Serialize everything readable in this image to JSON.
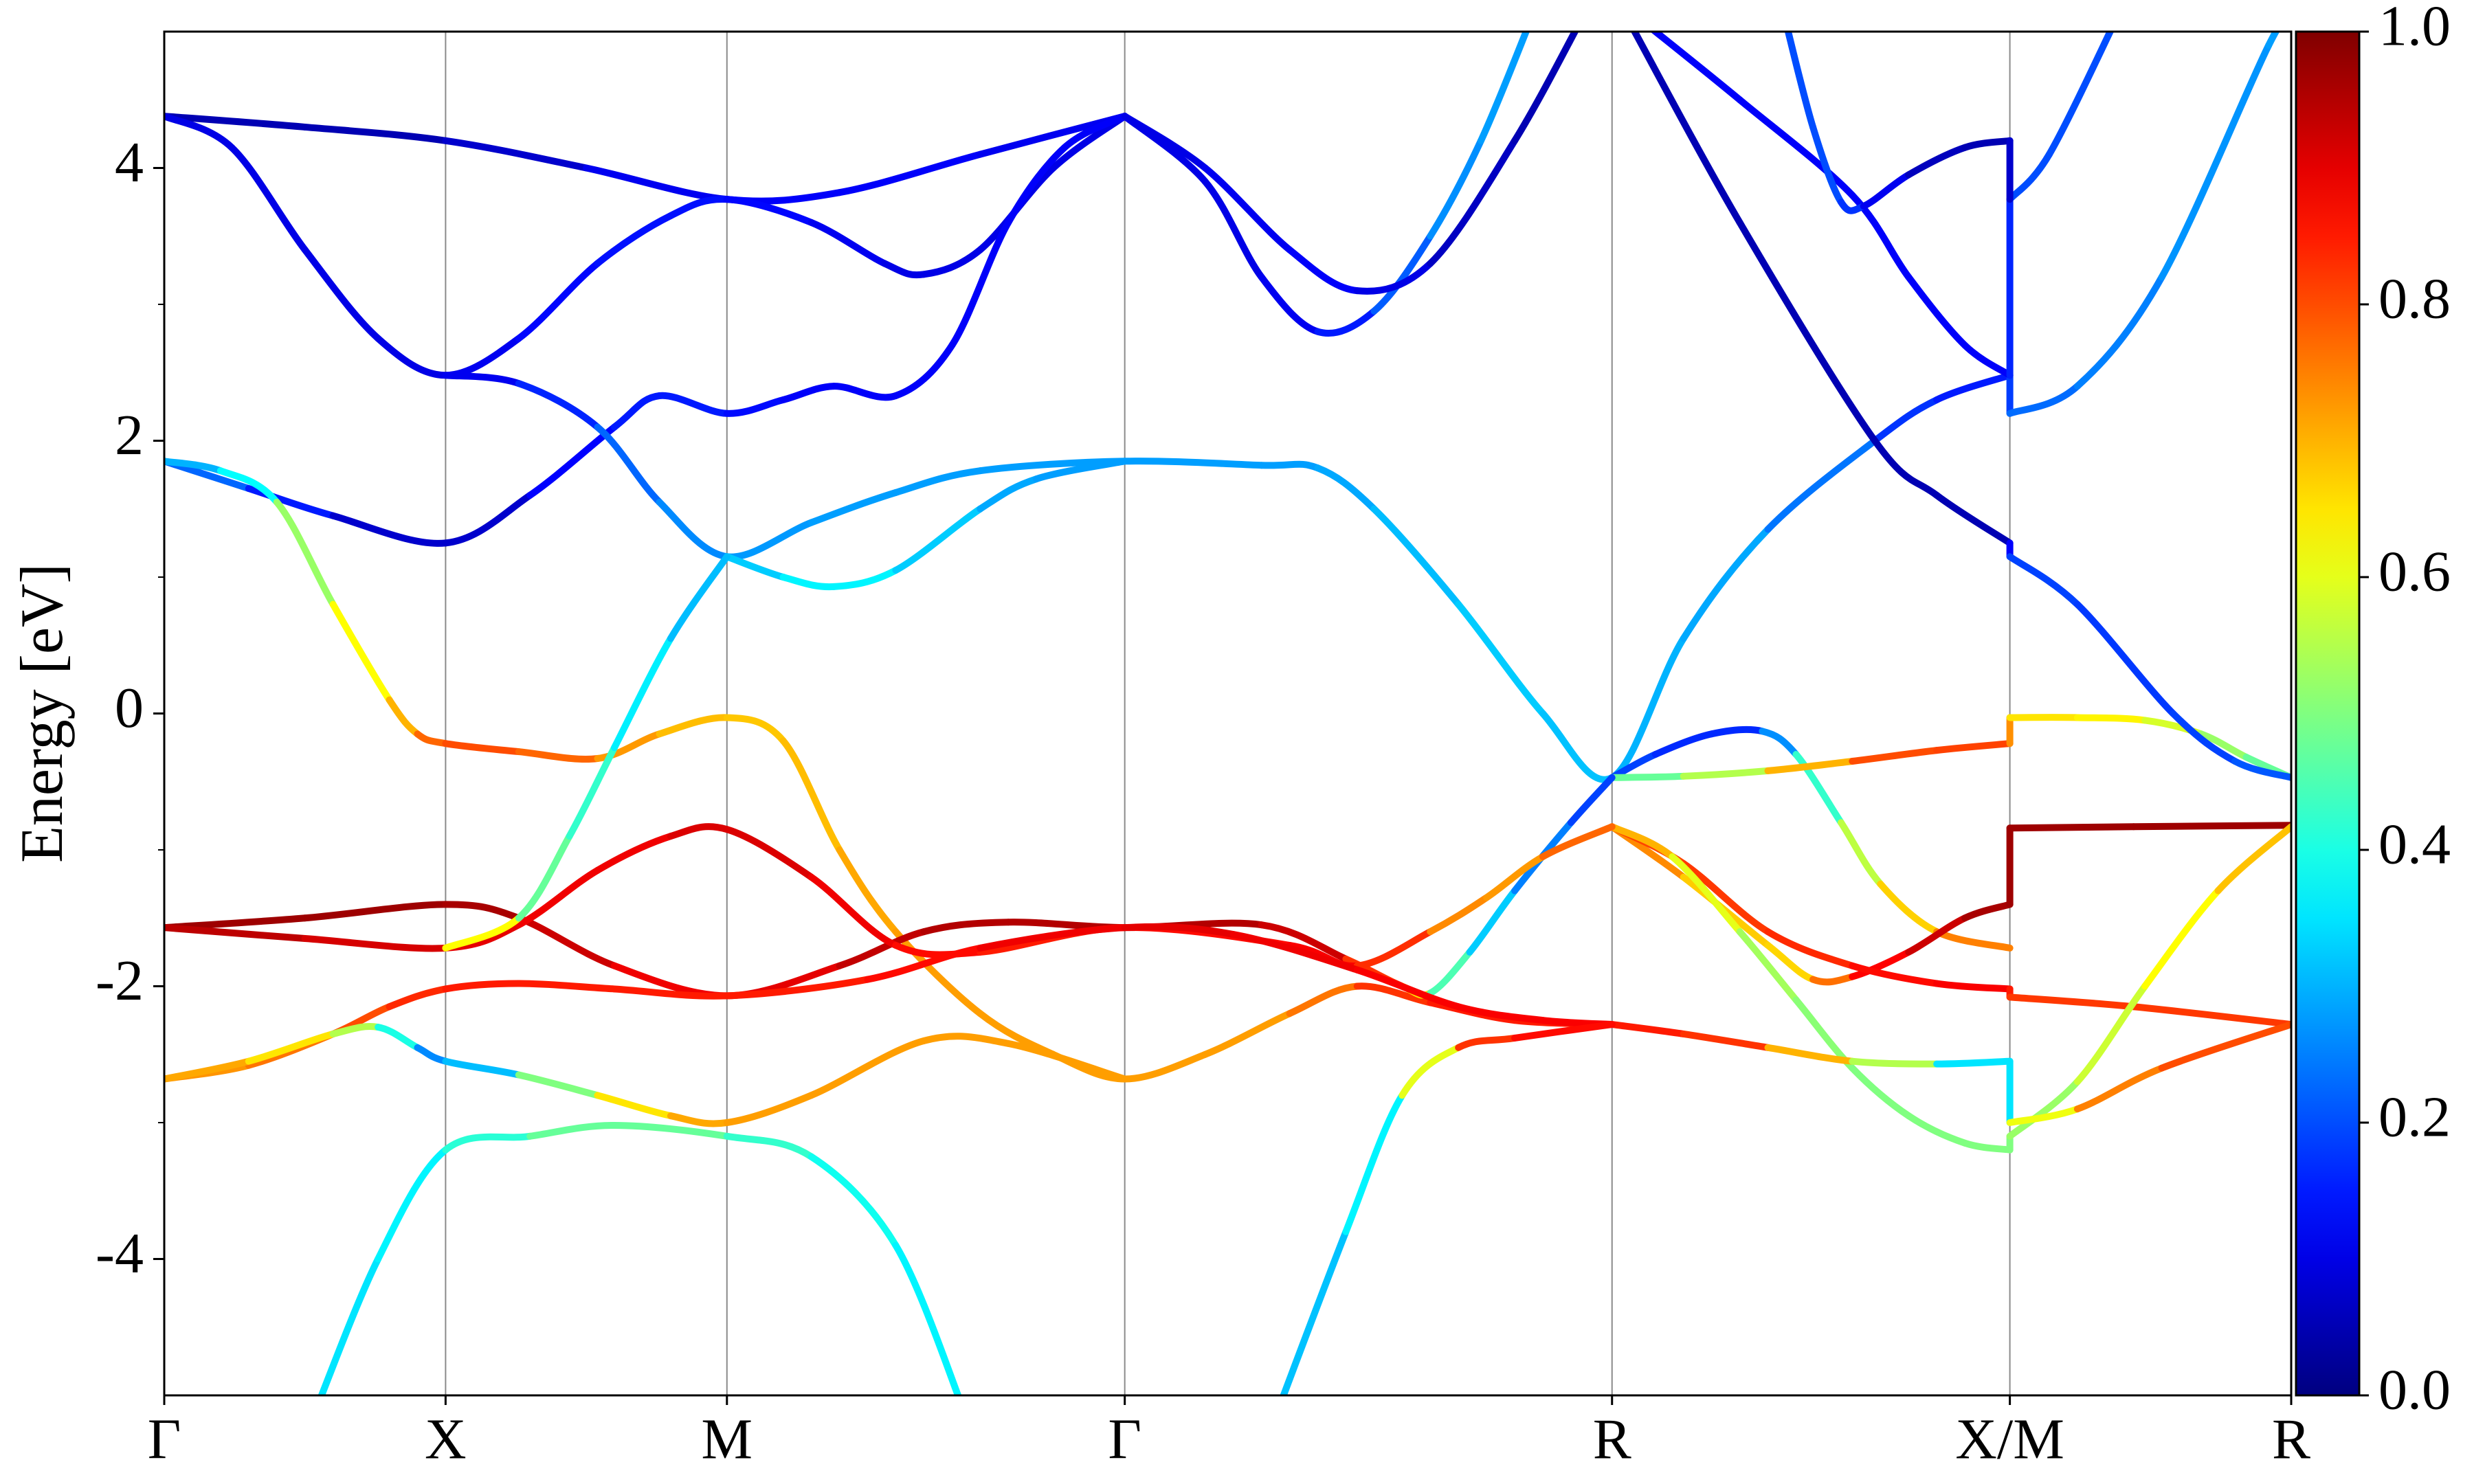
{
  "chart_data": {
    "type": "line",
    "y_label": "Energy [eV]",
    "xlim": [
      0,
      3.78
    ],
    "ylim": [
      -5,
      5
    ],
    "xticks": [
      {
        "value": 0,
        "label": "Γ"
      },
      {
        "value": 0.5,
        "label": "X"
      },
      {
        "value": 1.0,
        "label": "M"
      },
      {
        "value": 1.707,
        "label": "Γ"
      },
      {
        "value": 2.573,
        "label": "R"
      },
      {
        "value": 3.28,
        "label": "X/M"
      },
      {
        "value": 3.78,
        "label": "R"
      }
    ],
    "yticks": [
      -4,
      -2,
      0,
      2,
      4
    ],
    "yminorticks": [
      -3,
      -1,
      1,
      3
    ],
    "grid": true,
    "colormap": "jet",
    "clim": [
      0,
      1
    ],
    "cticks": [
      {
        "value": 0,
        "label": "0.0"
      },
      0.2,
      0.4,
      0.6,
      0.8,
      {
        "value": 1,
        "label": "1.0"
      }
    ],
    "series": [
      {
        "x": [
          0,
          0.25,
          0.5,
          0.75,
          1.0,
          1.2,
          1.45,
          1.707
        ],
        "values": [
          4.38,
          4.3,
          4.2,
          4.0,
          3.77,
          3.82,
          4.1,
          4.38
        ],
        "weights": [
          0.05,
          0.05,
          0.05,
          0.1,
          0.12,
          0.12,
          0.12,
          0.1
        ]
      },
      {
        "x": [
          0,
          0.12,
          0.25,
          0.38,
          0.5,
          0.63,
          0.77,
          0.9,
          1.0,
          1.15,
          1.28,
          1.35,
          1.45,
          1.58,
          1.707
        ],
        "values": [
          4.38,
          4.15,
          3.4,
          2.75,
          2.48,
          2.75,
          3.3,
          3.65,
          3.77,
          3.6,
          3.3,
          3.22,
          3.4,
          4.0,
          4.38
        ],
        "weights": [
          0.1,
          0.1,
          0.1,
          0.1,
          0.1,
          0.12,
          0.14,
          0.14,
          0.14,
          0.12,
          0.1,
          0.1,
          0.1,
          0.1,
          0.1
        ]
      },
      {
        "x": [
          0,
          0.15,
          0.3,
          0.5,
          0.65,
          0.8,
          0.88,
          1.0,
          1.1,
          1.19,
          1.3,
          1.4,
          1.5,
          1.6,
          1.707
        ],
        "values": [
          1.85,
          1.65,
          1.45,
          1.25,
          1.6,
          2.1,
          2.33,
          2.2,
          2.3,
          2.4,
          2.33,
          2.7,
          3.6,
          4.15,
          4.38
        ],
        "weights": [
          0.25,
          0.2,
          0.1,
          0.05,
          0.1,
          0.15,
          0.15,
          0.15,
          0.12,
          0.12,
          0.12,
          0.12,
          0.12,
          0.12,
          0.12
        ]
      },
      {
        "x": [
          0.5,
          0.63,
          0.77,
          0.88,
          1.0,
          1.15,
          1.3,
          1.45,
          1.707,
          1.95,
          2.05,
          2.15,
          2.3,
          2.45,
          2.573,
          2.7,
          2.85,
          3.04,
          3.15,
          3.28,
          3.28,
          3.4,
          3.55,
          3.74,
          3.78
        ],
        "values": [
          2.48,
          2.42,
          2.1,
          1.55,
          1.15,
          1.4,
          1.62,
          1.78,
          1.85,
          1.82,
          1.8,
          1.5,
          0.8,
          0.0,
          -0.47,
          0.55,
          1.35,
          2.0,
          2.3,
          2.48,
          2.2,
          2.4,
          3.2,
          4.9,
          5.1
        ],
        "weights": [
          0.1,
          0.12,
          0.2,
          0.25,
          0.27,
          0.28,
          0.28,
          0.28,
          0.28,
          0.28,
          0.28,
          0.3,
          0.32,
          0.33,
          0.3,
          0.3,
          0.28,
          0.2,
          0.15,
          0.15,
          0.22,
          0.24,
          0.26,
          0.28,
          0.28
        ]
      },
      {
        "x": [
          1.0,
          1.1,
          1.19,
          1.3,
          1.45,
          1.55,
          1.707
        ],
        "values": [
          1.15,
          1.0,
          0.93,
          1.05,
          1.5,
          1.72,
          1.85
        ],
        "weights": [
          0.3,
          0.35,
          0.38,
          0.35,
          0.3,
          0.28,
          0.28
        ]
      },
      {
        "x": [
          0,
          0.1,
          0.2,
          0.3,
          0.4,
          0.45,
          0.5,
          0.63,
          0.77,
          0.88,
          1.0,
          1.1,
          1.2,
          1.3,
          1.45,
          1.58,
          1.707,
          1.85,
          2.0,
          2.12,
          2.25,
          2.4,
          2.573
        ],
        "values": [
          1.85,
          1.78,
          1.55,
          0.8,
          0.1,
          -0.15,
          -0.22,
          -0.28,
          -0.33,
          -0.15,
          -0.03,
          -0.2,
          -1.0,
          -1.6,
          -2.2,
          -2.5,
          -2.68,
          -2.5,
          -2.2,
          -2.0,
          -2.12,
          -2.25,
          -2.28
        ],
        "weights": [
          0.3,
          0.3,
          0.45,
          0.6,
          0.65,
          0.75,
          0.8,
          0.8,
          0.75,
          0.7,
          0.68,
          0.68,
          0.7,
          0.72,
          0.72,
          0.72,
          0.72,
          0.72,
          0.72,
          0.8,
          0.85,
          0.85,
          0.85
        ]
      },
      {
        "x": [
          2.573,
          2.65,
          2.75,
          2.84,
          2.9,
          2.98,
          3.05,
          3.15,
          3.28
        ],
        "values": [
          -0.47,
          -0.3,
          -0.15,
          -0.13,
          -0.3,
          -0.8,
          -1.25,
          -1.6,
          -1.72
        ],
        "weights": [
          0.2,
          0.18,
          0.15,
          0.18,
          0.35,
          0.5,
          0.62,
          0.72,
          0.78
        ]
      },
      {
        "x": [
          2.573,
          2.7,
          2.85,
          3.0,
          3.15,
          3.28,
          3.28,
          3.4,
          3.52,
          3.62,
          3.7,
          3.78
        ],
        "values": [
          -0.47,
          -0.46,
          -0.42,
          -0.35,
          -0.27,
          -0.22,
          -0.03,
          -0.03,
          -0.05,
          -0.15,
          -0.32,
          -0.47
        ],
        "weights": [
          0.45,
          0.5,
          0.6,
          0.8,
          0.8,
          0.82,
          0.65,
          0.65,
          0.62,
          0.55,
          0.5,
          0.45
        ]
      },
      {
        "x": [
          2.573,
          2.7,
          2.85,
          2.93,
          3.0,
          3.1,
          3.2,
          3.28,
          3.28,
          3.5,
          3.78
        ],
        "values": [
          -0.83,
          -1.2,
          -1.7,
          -1.95,
          -1.93,
          -1.75,
          -1.5,
          -1.4,
          -0.84,
          -0.83,
          -0.82
        ],
        "weights": [
          0.78,
          0.7,
          0.65,
          0.68,
          0.85,
          0.9,
          0.95,
          0.97,
          0.97,
          0.97,
          0.97
        ]
      },
      {
        "x": [
          2.573,
          2.7,
          2.85,
          3.0,
          3.15,
          3.28,
          3.28,
          3.5,
          3.78
        ],
        "values": [
          -0.83,
          -1.1,
          -1.6,
          -1.85,
          -1.98,
          -2.02,
          -2.08,
          -2.15,
          -2.28
        ],
        "weights": [
          0.8,
          0.82,
          0.82,
          0.85,
          0.88,
          0.88,
          0.82,
          0.82,
          0.82
        ]
      },
      {
        "x": [
          2.573,
          2.68,
          2.8,
          2.9,
          3.0,
          3.1,
          3.2,
          3.28,
          3.28,
          3.4,
          3.52,
          3.65,
          3.78
        ],
        "values": [
          -0.83,
          -1.05,
          -1.6,
          -2.1,
          -2.6,
          -2.95,
          -3.15,
          -3.2,
          -3.1,
          -2.7,
          -2.0,
          -1.3,
          -0.83
        ],
        "weights": [
          0.75,
          0.65,
          0.55,
          0.52,
          0.5,
          0.5,
          0.5,
          0.5,
          0.5,
          0.55,
          0.6,
          0.65,
          0.72
        ]
      },
      {
        "x": [
          2.573,
          2.7,
          2.85,
          3.0,
          3.15,
          3.28,
          3.28,
          3.4,
          3.55,
          3.78
        ],
        "values": [
          -2.28,
          -2.35,
          -2.45,
          -2.55,
          -2.57,
          -2.55,
          -3.0,
          -2.9,
          -2.6,
          -2.28
        ],
        "weights": [
          0.85,
          0.85,
          0.8,
          0.6,
          0.5,
          0.2,
          0.5,
          0.72,
          0.78,
          0.82
        ]
      },
      {
        "x": [
          0,
          0.25,
          0.5,
          0.63,
          0.8,
          1.0,
          1.2,
          1.35,
          1.5,
          1.707,
          1.95,
          2.1,
          2.2,
          2.25,
          2.32,
          2.4,
          2.5,
          2.573
        ],
        "values": [
          -1.57,
          -1.5,
          -1.4,
          -1.5,
          -1.85,
          -2.07,
          -1.85,
          -1.6,
          -1.53,
          -1.57,
          -1.55,
          -1.8,
          -2.0,
          -2.05,
          -1.75,
          -1.3,
          -0.8,
          -0.47
        ],
        "weights": [
          0.97,
          0.97,
          0.97,
          0.95,
          0.9,
          0.88,
          0.92,
          0.95,
          0.95,
          0.95,
          0.95,
          0.9,
          0.75,
          0.55,
          0.35,
          0.3,
          0.2,
          0.18
        ]
      },
      {
        "x": [
          0,
          0.25,
          0.5,
          0.63,
          0.77,
          0.9,
          1.0,
          1.15,
          1.3,
          1.45,
          1.707,
          2.0,
          2.12,
          2.25,
          2.35,
          2.45,
          2.573
        ],
        "values": [
          -1.57,
          -1.65,
          -1.72,
          -1.55,
          -1.15,
          -0.9,
          -0.85,
          -1.2,
          -1.7,
          -1.75,
          -1.57,
          -1.7,
          -1.85,
          -1.6,
          -1.35,
          -1.05,
          -0.83
        ],
        "weights": [
          0.95,
          0.93,
          0.9,
          0.9,
          0.88,
          0.9,
          0.92,
          0.9,
          0.88,
          0.85,
          0.85,
          0.88,
          0.88,
          0.78,
          0.7,
          0.75,
          0.8
        ]
      },
      {
        "x": [
          0,
          0.15,
          0.3,
          0.4,
          0.5,
          0.63,
          0.8,
          1.0,
          1.25,
          1.45,
          1.707,
          1.9,
          2.12,
          2.3,
          2.45,
          2.573
        ],
        "values": [
          -2.68,
          -2.58,
          -2.35,
          -2.15,
          -2.02,
          -1.98,
          -2.02,
          -2.07,
          -1.95,
          -1.72,
          -1.57,
          -1.62,
          -1.88,
          -2.15,
          -2.25,
          -2.28
        ],
        "weights": [
          0.72,
          0.74,
          0.78,
          0.82,
          0.85,
          0.85,
          0.85,
          0.85,
          0.85,
          0.88,
          0.9,
          0.9,
          0.88,
          0.88,
          0.88,
          0.88
        ]
      },
      {
        "x": [
          0,
          0.15,
          0.3,
          0.38,
          0.45,
          0.5,
          0.63,
          0.77,
          0.9,
          1.0,
          1.15,
          1.35,
          1.5,
          1.707
        ],
        "values": [
          -2.68,
          -2.55,
          -2.35,
          -2.3,
          -2.45,
          -2.55,
          -2.65,
          -2.8,
          -2.95,
          -3.0,
          -2.8,
          -2.4,
          -2.42,
          -2.68
        ],
        "weights": [
          0.72,
          0.7,
          0.6,
          0.5,
          0.3,
          0.22,
          0.4,
          0.6,
          0.7,
          0.72,
          0.72,
          0.72,
          0.72,
          0.72
        ]
      },
      {
        "x": [
          0.5,
          0.63,
          0.72,
          0.8,
          0.9,
          1.0
        ],
        "values": [
          -1.72,
          -1.5,
          -0.9,
          -0.25,
          0.55,
          1.15
        ],
        "weights": [
          0.75,
          0.5,
          0.45,
          0.4,
          0.32,
          0.3
        ]
      },
      {
        "x": [
          0.27,
          0.38,
          0.5,
          0.65,
          0.8,
          1.0,
          1.15,
          1.3,
          1.42
        ],
        "values": [
          -5.1,
          -4.0,
          -3.2,
          -3.1,
          -3.02,
          -3.1,
          -3.25,
          -3.9,
          -5.1
        ],
        "weights": [
          0.35,
          0.35,
          0.38,
          0.45,
          0.5,
          0.45,
          0.4,
          0.38,
          0.35
        ]
      },
      {
        "x": [
          1.98,
          2.1,
          2.2,
          2.3,
          2.4,
          2.573
        ],
        "values": [
          -5.1,
          -3.8,
          -2.8,
          -2.45,
          -2.38,
          -2.28
        ],
        "weights": [
          0.3,
          0.33,
          0.4,
          0.8,
          0.85,
          0.88
        ]
      },
      {
        "x": [
          1.707,
          1.85,
          1.95,
          2.05,
          2.15,
          2.25,
          2.34,
          2.43
        ],
        "values": [
          4.38,
          3.9,
          3.2,
          2.8,
          2.95,
          3.5,
          4.2,
          5.1
        ],
        "weights": [
          0.1,
          0.1,
          0.1,
          0.12,
          0.18,
          0.25,
          0.28,
          0.28
        ]
      },
      {
        "x": [
          1.707,
          1.85,
          2.0,
          2.12,
          2.25,
          2.4,
          2.52
        ],
        "values": [
          4.38,
          4.0,
          3.4,
          3.1,
          3.3,
          4.2,
          5.1
        ],
        "weights": [
          0.1,
          0.1,
          0.12,
          0.12,
          0.08,
          0.05,
          0.05
        ]
      },
      {
        "x": [
          2.6,
          2.8,
          3.04,
          3.15,
          3.28,
          3.28,
          3.4,
          3.57,
          3.68,
          3.78
        ],
        "values": [
          5.1,
          3.6,
          2.0,
          1.6,
          1.25,
          1.15,
          0.8,
          0.0,
          -0.35,
          -0.47
        ],
        "weights": [
          0.05,
          0.05,
          0.05,
          0.05,
          0.05,
          0.2,
          0.18,
          0.18,
          0.2,
          0.22
        ]
      },
      {
        "x": [
          2.62,
          2.8,
          3.0,
          3.1,
          3.2,
          3.28,
          3.28,
          3.35,
          3.47
        ],
        "values": [
          5.1,
          4.5,
          3.8,
          3.2,
          2.7,
          2.48,
          3.77,
          4.1,
          5.1
        ],
        "weights": [
          0.12,
          0.12,
          0.12,
          0.12,
          0.12,
          0.12,
          0.2,
          0.2,
          0.2
        ]
      },
      {
        "x": [
          2.88,
          2.93,
          2.98,
          3.02,
          3.1,
          3.2,
          3.28,
          3.28
        ],
        "values": [
          5.1,
          4.3,
          3.75,
          3.72,
          3.95,
          4.15,
          4.2,
          3.77
        ],
        "weights": [
          0.2,
          0.2,
          0.2,
          0.15,
          0.07,
          0.05,
          0.05,
          0.1
        ]
      }
    ]
  }
}
